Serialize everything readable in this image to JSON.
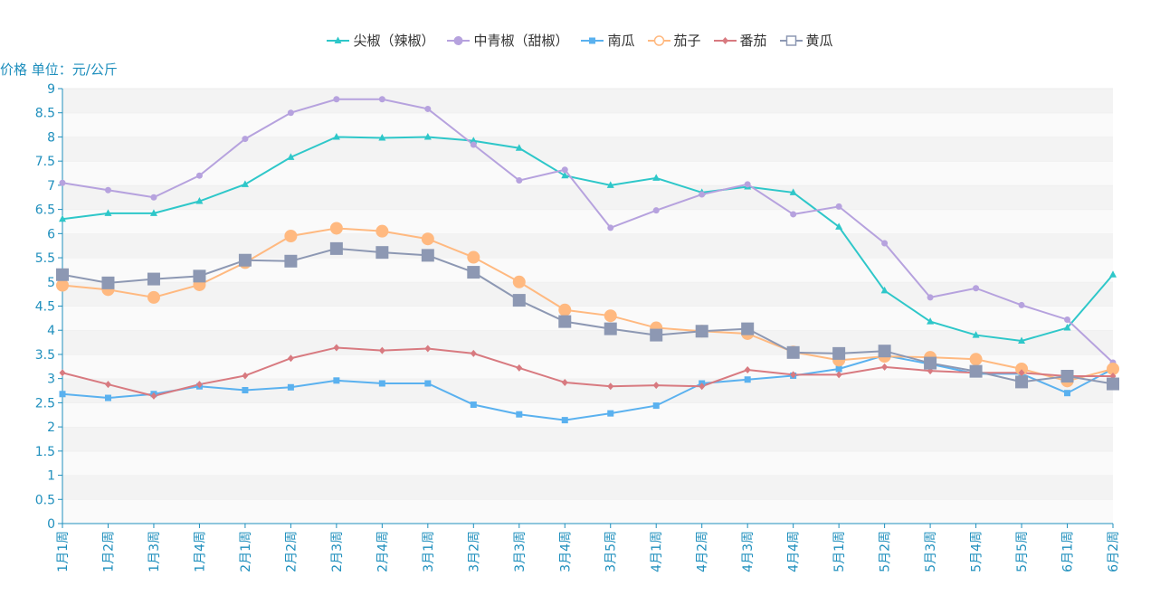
{
  "chart_data": {
    "type": "line",
    "ylabel": "价格 单位：元/公斤",
    "ylim": [
      0,
      9
    ],
    "yticks": [
      "0",
      "0.5",
      "1",
      "1.5",
      "2",
      "2.5",
      "3",
      "3.5",
      "4",
      "4.5",
      "5",
      "5.5",
      "6",
      "6.5",
      "7",
      "7.5",
      "8",
      "8.5",
      "9"
    ],
    "categories": [
      "1月1周",
      "1月2周",
      "1月3周",
      "1月4周",
      "2月1周",
      "2月2周",
      "2月3周",
      "2月4周",
      "3月1周",
      "3月2周",
      "3月3周",
      "3月4周",
      "3月5周",
      "4月1周",
      "4月2周",
      "4月3周",
      "4月4周",
      "5月1周",
      "5月2周",
      "5月3周",
      "5月4周",
      "5月5周",
      "6月1周",
      "6月2周"
    ],
    "series": [
      {
        "name": "尖椒（辣椒）",
        "color": "#2ec7c9",
        "marker": "triangle",
        "values": [
          6.3,
          6.42,
          6.42,
          6.67,
          7.02,
          7.58,
          8.0,
          7.98,
          8.0,
          7.92,
          7.77,
          7.2,
          7.0,
          7.15,
          6.85,
          6.97,
          6.85,
          6.14,
          4.82,
          4.18,
          3.9,
          3.78,
          4.05,
          5.15
        ]
      },
      {
        "name": "中青椒（甜椒）",
        "color": "#b6a2de",
        "marker": "circle",
        "values": [
          7.05,
          6.9,
          6.75,
          7.2,
          7.96,
          8.5,
          8.78,
          8.78,
          8.58,
          7.84,
          7.1,
          7.32,
          6.12,
          6.48,
          6.81,
          7.02,
          6.4,
          6.56,
          5.8,
          4.68,
          4.87,
          4.52,
          4.22,
          3.33
        ]
      },
      {
        "name": "南瓜",
        "color": "#5ab1ef",
        "marker": "square",
        "values": [
          2.68,
          2.6,
          2.68,
          2.84,
          2.76,
          2.82,
          2.96,
          2.9,
          2.9,
          2.46,
          2.26,
          2.14,
          2.28,
          2.44,
          2.9,
          2.98,
          3.06,
          3.2,
          3.48,
          3.3,
          3.1,
          3.1,
          2.7,
          3.2
        ]
      },
      {
        "name": "茄子",
        "color": "#ffb980",
        "marker": "empty-circle",
        "values": [
          4.93,
          4.84,
          4.68,
          4.94,
          5.4,
          5.95,
          6.11,
          6.05,
          5.89,
          5.51,
          5.0,
          4.42,
          4.3,
          4.05,
          3.98,
          3.93,
          3.55,
          3.38,
          3.46,
          3.44,
          3.4,
          3.2,
          2.95,
          3.2
        ]
      },
      {
        "name": "番茄",
        "color": "#d87a80",
        "marker": "diamond",
        "values": [
          3.12,
          2.88,
          2.64,
          2.88,
          3.06,
          3.42,
          3.64,
          3.58,
          3.62,
          3.52,
          3.22,
          2.92,
          2.84,
          2.86,
          2.84,
          3.18,
          3.08,
          3.08,
          3.24,
          3.16,
          3.12,
          3.12,
          3.05,
          3.05
        ]
      },
      {
        "name": "黄瓜",
        "color": "#8d98b3",
        "marker": "empty-rect",
        "values": [
          5.15,
          4.98,
          5.06,
          5.12,
          5.45,
          5.43,
          5.69,
          5.61,
          5.55,
          5.2,
          4.62,
          4.18,
          4.03,
          3.9,
          3.98,
          4.03,
          3.54,
          3.52,
          3.57,
          3.32,
          3.15,
          2.93,
          3.05,
          2.89
        ]
      }
    ]
  }
}
